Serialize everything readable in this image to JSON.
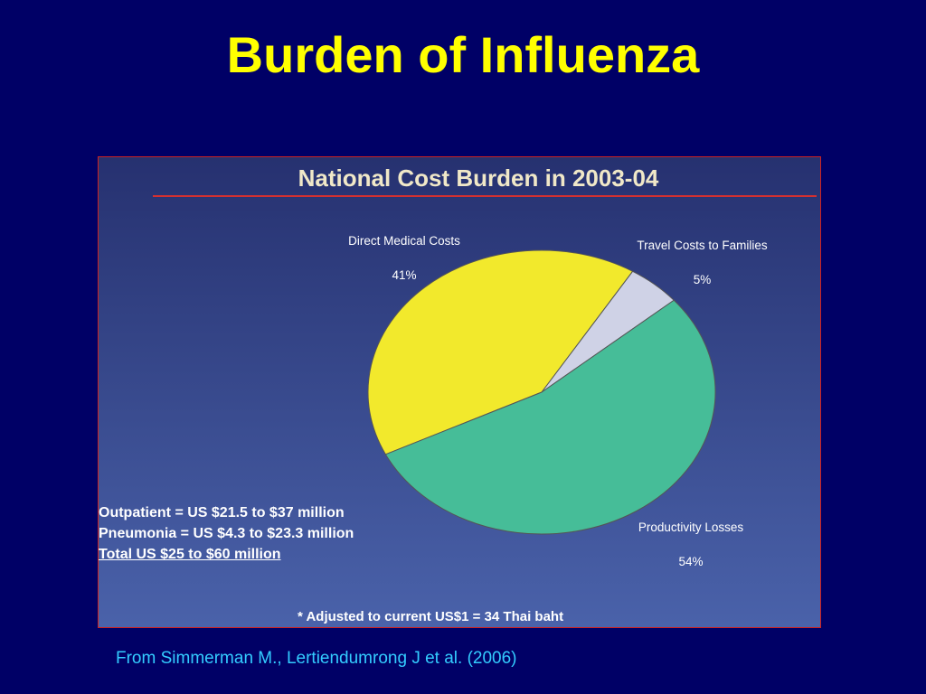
{
  "slide": {
    "title": "Burden of Influenza",
    "source": "From Simmerman M., Lertiendumrong J et al. (2006)"
  },
  "chart_data": {
    "type": "pie",
    "title": "National Cost Burden in 2003-04",
    "categories": [
      "Direct Medical Costs",
      "Travel Costs to Families",
      "Productivity Losses"
    ],
    "values": [
      41,
      5,
      54
    ],
    "value_labels": [
      "41%",
      "5%",
      "54%"
    ],
    "colors": [
      "#f2e92c",
      "#cfd2e6",
      "#46bd98"
    ],
    "notes": [
      "Outpatient = US $21.5 to $37 million",
      "Pneumonia = US $4.3 to $23.3 million",
      "Total US $25 to $60 million"
    ],
    "footnote": "* Adjusted to current US$1 = 34 Thai baht"
  }
}
